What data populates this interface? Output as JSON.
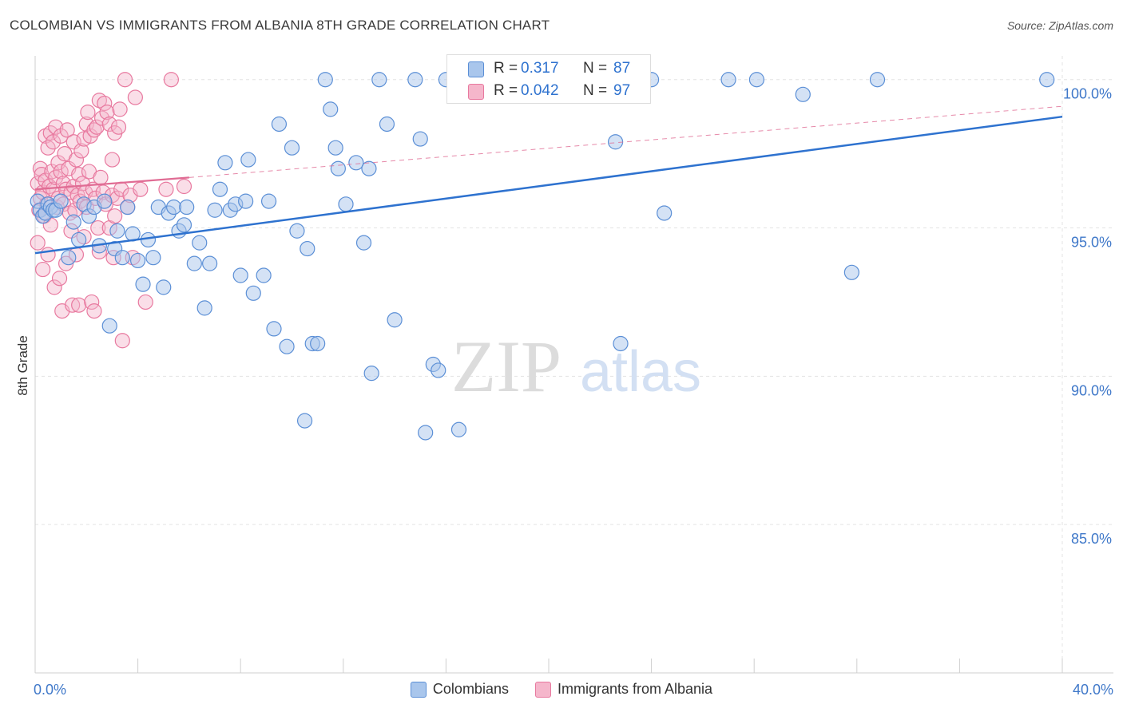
{
  "title": "COLOMBIAN VS IMMIGRANTS FROM ALBANIA 8TH GRADE CORRELATION CHART",
  "source": "Source: ZipAtlas.com",
  "watermark": {
    "zip": "ZIP",
    "atlas": "atlas"
  },
  "colors": {
    "blue_fill": "#a9c6ec",
    "blue_stroke": "#5b8fd6",
    "blue_line": "#2e72cf",
    "pink_fill": "#f5b6cb",
    "pink_stroke": "#e8799f",
    "pink_line": "#e06c94",
    "tick_label": "#3f78c9",
    "grid": "#e3e3e3"
  },
  "stats": [
    {
      "r_label": "R =",
      "r_value": "0.317",
      "n_label": "N =",
      "n_value": "87"
    },
    {
      "r_label": "R =",
      "r_value": "0.042",
      "n_label": "N =",
      "n_value": "97"
    }
  ],
  "legend": [
    "Colombians",
    "Immigrants from Albania"
  ],
  "chart_data": {
    "type": "scatter",
    "title": "COLOMBIAN VS IMMIGRANTS FROM ALBANIA 8TH GRADE CORRELATION CHART",
    "xlabel": "",
    "ylabel": "8th Grade",
    "xlim": [
      0,
      40
    ],
    "ylim": [
      80,
      100.8
    ],
    "x_tick_labels": [
      {
        "value": 0,
        "label": "0.0%"
      },
      {
        "value": 40,
        "label": "40.0%"
      }
    ],
    "y_tick_labels": [
      {
        "value": 100,
        "label": "100.0%"
      },
      {
        "value": 95,
        "label": "95.0%"
      },
      {
        "value": 90,
        "label": "90.0%"
      },
      {
        "value": 85,
        "label": "85.0%"
      }
    ],
    "grid": true,
    "legend_position": "bottom",
    "series": [
      {
        "name": "Colombians",
        "r": 0.317,
        "n": 87,
        "trend": {
          "x": [
            0,
            40
          ],
          "y": [
            94.15,
            98.75
          ],
          "style": "solid"
        },
        "points": [
          [
            0.1,
            95.9
          ],
          [
            0.2,
            95.6
          ],
          [
            0.3,
            95.4
          ],
          [
            0.4,
            95.5
          ],
          [
            0.5,
            95.8
          ],
          [
            0.6,
            95.7
          ],
          [
            0.7,
            95.6
          ],
          [
            0.8,
            95.6
          ],
          [
            1.0,
            95.9
          ],
          [
            1.3,
            94.0
          ],
          [
            1.5,
            95.2
          ],
          [
            1.7,
            94.6
          ],
          [
            1.9,
            95.8
          ],
          [
            2.1,
            95.4
          ],
          [
            2.3,
            95.7
          ],
          [
            2.5,
            94.4
          ],
          [
            2.7,
            95.9
          ],
          [
            2.9,
            91.7
          ],
          [
            3.1,
            94.3
          ],
          [
            3.2,
            94.9
          ],
          [
            3.4,
            94.0
          ],
          [
            3.6,
            95.7
          ],
          [
            3.8,
            94.8
          ],
          [
            4.0,
            93.9
          ],
          [
            4.2,
            93.1
          ],
          [
            4.4,
            94.6
          ],
          [
            4.6,
            94.0
          ],
          [
            4.8,
            95.7
          ],
          [
            5.0,
            93.0
          ],
          [
            5.2,
            95.5
          ],
          [
            5.4,
            95.7
          ],
          [
            5.6,
            94.9
          ],
          [
            5.8,
            95.1
          ],
          [
            5.9,
            95.7
          ],
          [
            6.2,
            93.8
          ],
          [
            6.4,
            94.5
          ],
          [
            6.6,
            92.3
          ],
          [
            6.8,
            93.8
          ],
          [
            7.0,
            95.6
          ],
          [
            7.2,
            96.3
          ],
          [
            7.4,
            97.2
          ],
          [
            7.6,
            95.6
          ],
          [
            7.8,
            95.8
          ],
          [
            8.0,
            93.4
          ],
          [
            8.2,
            95.9
          ],
          [
            8.3,
            97.3
          ],
          [
            8.5,
            92.8
          ],
          [
            8.9,
            93.4
          ],
          [
            9.1,
            95.9
          ],
          [
            9.3,
            91.6
          ],
          [
            9.5,
            98.5
          ],
          [
            9.8,
            91.0
          ],
          [
            10.0,
            97.7
          ],
          [
            10.2,
            94.9
          ],
          [
            10.5,
            88.5
          ],
          [
            10.6,
            94.3
          ],
          [
            10.8,
            91.1
          ],
          [
            11.0,
            91.1
          ],
          [
            11.3,
            100.0
          ],
          [
            11.5,
            99.0
          ],
          [
            11.7,
            97.7
          ],
          [
            11.8,
            97.0
          ],
          [
            12.1,
            95.8
          ],
          [
            12.5,
            97.2
          ],
          [
            12.8,
            94.5
          ],
          [
            13.0,
            97.0
          ],
          [
            13.1,
            90.1
          ],
          [
            13.4,
            100.0
          ],
          [
            13.7,
            98.5
          ],
          [
            14.0,
            91.9
          ],
          [
            14.8,
            100.0
          ],
          [
            15.0,
            98.0
          ],
          [
            15.2,
            88.1
          ],
          [
            15.5,
            90.4
          ],
          [
            15.7,
            90.2
          ],
          [
            16.0,
            100.0
          ],
          [
            16.5,
            88.2
          ],
          [
            22.6,
            97.9
          ],
          [
            22.8,
            91.1
          ],
          [
            24.0,
            100.0
          ],
          [
            24.5,
            95.5
          ],
          [
            27.0,
            100.0
          ],
          [
            28.1,
            100.0
          ],
          [
            29.9,
            99.5
          ],
          [
            31.8,
            93.5
          ],
          [
            32.8,
            100.0
          ],
          [
            39.4,
            100.0
          ]
        ]
      },
      {
        "name": "Immigrants from Albania",
        "r": 0.042,
        "n": 97,
        "trend": {
          "x": [
            0,
            6
          ],
          "y": [
            96.3,
            96.7
          ],
          "style": "solid",
          "extended": {
            "x": [
              6,
              40
            ],
            "y": [
              96.7,
              99.1
            ],
            "style": "dashed"
          }
        },
        "points": [
          [
            0.1,
            94.5
          ],
          [
            0.1,
            96.5
          ],
          [
            0.15,
            95.6
          ],
          [
            0.2,
            97.0
          ],
          [
            0.2,
            96.0
          ],
          [
            0.25,
            96.8
          ],
          [
            0.3,
            93.6
          ],
          [
            0.3,
            96.2
          ],
          [
            0.35,
            95.4
          ],
          [
            0.4,
            98.1
          ],
          [
            0.4,
            96.6
          ],
          [
            0.45,
            95.8
          ],
          [
            0.5,
            94.1
          ],
          [
            0.5,
            97.7
          ],
          [
            0.55,
            96.4
          ],
          [
            0.6,
            98.2
          ],
          [
            0.6,
            95.1
          ],
          [
            0.65,
            96.9
          ],
          [
            0.7,
            97.9
          ],
          [
            0.7,
            96.3
          ],
          [
            0.75,
            93.0
          ],
          [
            0.8,
            98.4
          ],
          [
            0.8,
            96.7
          ],
          [
            0.85,
            95.7
          ],
          [
            0.9,
            97.2
          ],
          [
            0.9,
            96.0
          ],
          [
            0.95,
            93.3
          ],
          [
            1.0,
            98.1
          ],
          [
            1.0,
            96.9
          ],
          [
            1.05,
            92.2
          ],
          [
            1.1,
            96.5
          ],
          [
            1.1,
            95.8
          ],
          [
            1.15,
            97.5
          ],
          [
            1.2,
            93.8
          ],
          [
            1.2,
            96.3
          ],
          [
            1.25,
            98.3
          ],
          [
            1.3,
            97.0
          ],
          [
            1.35,
            95.5
          ],
          [
            1.4,
            96.2
          ],
          [
            1.4,
            94.9
          ],
          [
            1.45,
            92.4
          ],
          [
            1.5,
            97.9
          ],
          [
            1.5,
            96.4
          ],
          [
            1.55,
            95.6
          ],
          [
            1.6,
            97.3
          ],
          [
            1.6,
            94.1
          ],
          [
            1.65,
            96.1
          ],
          [
            1.7,
            96.8
          ],
          [
            1.7,
            92.4
          ],
          [
            1.75,
            95.9
          ],
          [
            1.8,
            97.6
          ],
          [
            1.85,
            96.5
          ],
          [
            1.9,
            98.0
          ],
          [
            1.9,
            94.7
          ],
          [
            1.95,
            96.2
          ],
          [
            2.0,
            95.7
          ],
          [
            2.0,
            98.5
          ],
          [
            2.05,
            98.9
          ],
          [
            2.1,
            96.9
          ],
          [
            2.15,
            98.1
          ],
          [
            2.2,
            92.5
          ],
          [
            2.25,
            96.3
          ],
          [
            2.3,
            98.3
          ],
          [
            2.3,
            92.2
          ],
          [
            2.35,
            96.0
          ],
          [
            2.4,
            98.4
          ],
          [
            2.45,
            95.0
          ],
          [
            2.5,
            99.3
          ],
          [
            2.5,
            94.2
          ],
          [
            2.55,
            96.7
          ],
          [
            2.6,
            98.7
          ],
          [
            2.65,
            96.2
          ],
          [
            2.7,
            99.2
          ],
          [
            2.75,
            95.8
          ],
          [
            2.8,
            98.9
          ],
          [
            2.9,
            98.5
          ],
          [
            2.9,
            95.0
          ],
          [
            3.0,
            96.1
          ],
          [
            3.0,
            97.3
          ],
          [
            3.05,
            94.0
          ],
          [
            3.1,
            98.2
          ],
          [
            3.1,
            95.4
          ],
          [
            3.2,
            96.0
          ],
          [
            3.25,
            98.4
          ],
          [
            3.3,
            99.0
          ],
          [
            3.35,
            96.3
          ],
          [
            3.4,
            91.2
          ],
          [
            3.5,
            100.0
          ],
          [
            3.6,
            95.7
          ],
          [
            3.7,
            96.1
          ],
          [
            3.8,
            94.0
          ],
          [
            3.9,
            99.4
          ],
          [
            4.1,
            96.3
          ],
          [
            4.3,
            92.5
          ],
          [
            5.1,
            96.3
          ],
          [
            5.3,
            100.0
          ],
          [
            5.8,
            96.4
          ]
        ]
      }
    ]
  }
}
